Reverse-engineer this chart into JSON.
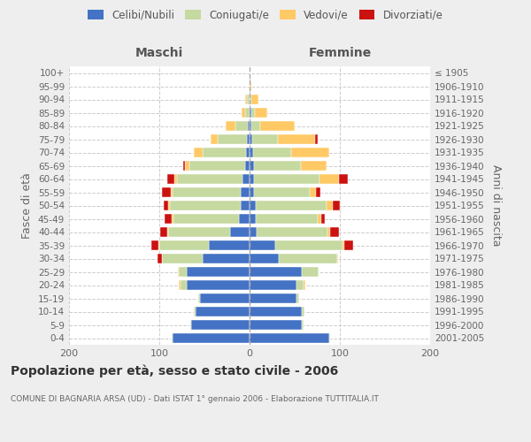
{
  "age_groups": [
    "0-4",
    "5-9",
    "10-14",
    "15-19",
    "20-24",
    "25-29",
    "30-34",
    "35-39",
    "40-44",
    "45-49",
    "50-54",
    "55-59",
    "60-64",
    "65-69",
    "70-74",
    "75-79",
    "80-84",
    "85-89",
    "90-94",
    "95-99",
    "100+"
  ],
  "birth_years": [
    "2001-2005",
    "1996-2000",
    "1991-1995",
    "1986-1990",
    "1981-1985",
    "1976-1980",
    "1971-1975",
    "1966-1970",
    "1961-1965",
    "1956-1960",
    "1951-1955",
    "1946-1950",
    "1941-1945",
    "1936-1940",
    "1931-1935",
    "1926-1930",
    "1921-1925",
    "1916-1920",
    "1911-1915",
    "1906-1910",
    "≤ 1905"
  ],
  "maschi": {
    "celibi": [
      85,
      65,
      60,
      55,
      70,
      70,
      52,
      45,
      22,
      12,
      10,
      10,
      8,
      5,
      4,
      3,
      2,
      0,
      0,
      0,
      0
    ],
    "coniugati": [
      1,
      1,
      2,
      2,
      6,
      8,
      45,
      55,
      68,
      72,
      78,
      75,
      72,
      62,
      48,
      32,
      14,
      5,
      3,
      0,
      0
    ],
    "vedovi": [
      0,
      0,
      0,
      0,
      2,
      1,
      0,
      1,
      1,
      2,
      2,
      2,
      3,
      5,
      10,
      8,
      10,
      4,
      2,
      0,
      0
    ],
    "divorziati": [
      0,
      0,
      0,
      0,
      0,
      0,
      5,
      8,
      8,
      8,
      5,
      10,
      8,
      2,
      0,
      0,
      0,
      0,
      0,
      0,
      0
    ]
  },
  "femmine": {
    "nubili": [
      88,
      58,
      58,
      52,
      52,
      58,
      32,
      28,
      8,
      7,
      7,
      5,
      5,
      5,
      4,
      3,
      2,
      2,
      0,
      0,
      0
    ],
    "coniugate": [
      1,
      2,
      3,
      3,
      8,
      18,
      65,
      75,
      78,
      68,
      78,
      62,
      72,
      52,
      42,
      28,
      10,
      4,
      2,
      0,
      0
    ],
    "vedove": [
      0,
      0,
      0,
      0,
      2,
      0,
      1,
      2,
      3,
      4,
      7,
      7,
      22,
      28,
      42,
      42,
      38,
      14,
      8,
      2,
      0
    ],
    "divorziate": [
      0,
      0,
      0,
      0,
      0,
      0,
      0,
      10,
      10,
      4,
      8,
      4,
      10,
      0,
      0,
      2,
      0,
      0,
      0,
      0,
      0
    ]
  },
  "colors": {
    "celibi_nubili": "#4472c4",
    "coniugati_e": "#c5d9a0",
    "vedovi_e": "#ffc966",
    "divorziati_e": "#cc1111"
  },
  "xlim": 200,
  "title": "Popolazione per età, sesso e stato civile - 2006",
  "subtitle": "COMUNE DI BAGNARIA ARSA (UD) - Dati ISTAT 1° gennaio 2006 - Elaborazione TUTTITALIA.IT",
  "ylabel_left": "Fasce di età",
  "ylabel_right": "Anni di nascita",
  "xlabel_left": "Maschi",
  "xlabel_right": "Femmine",
  "bg_color": "#eeeeee",
  "plot_bg_color": "#ffffff"
}
